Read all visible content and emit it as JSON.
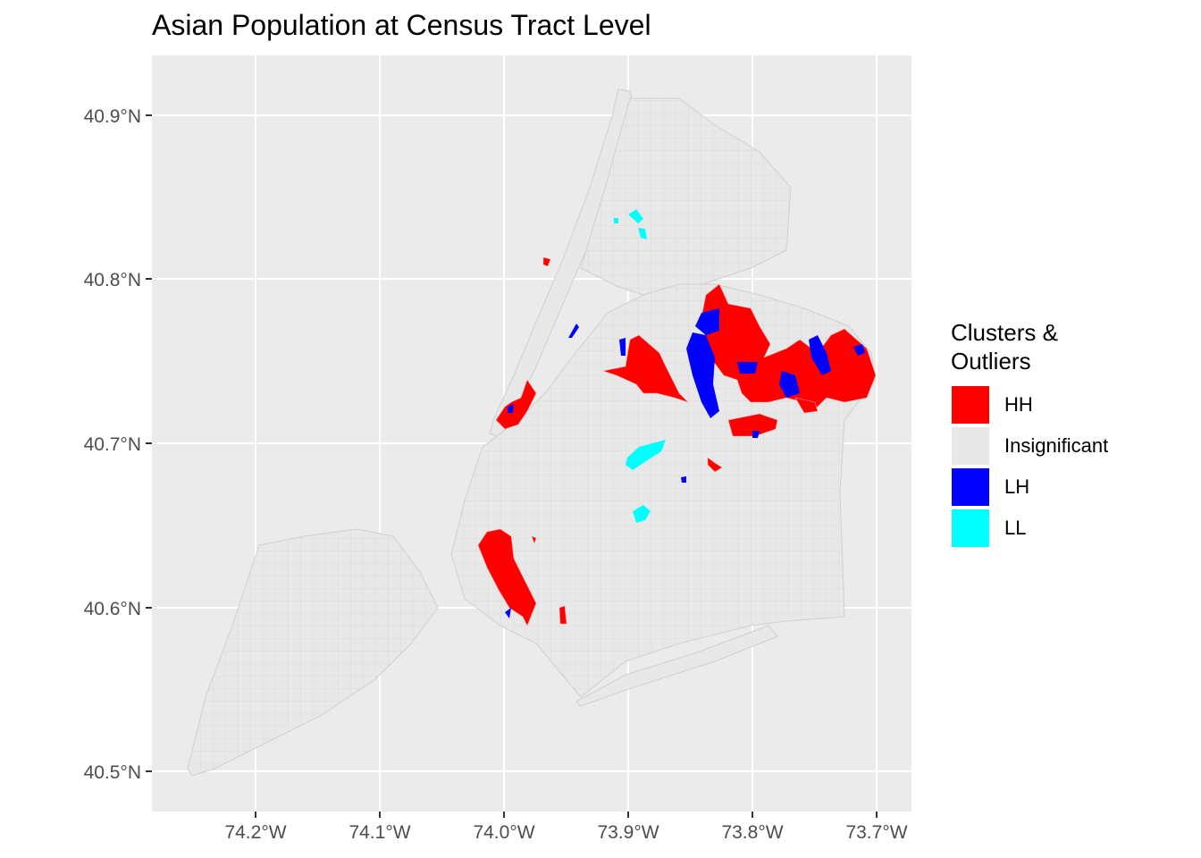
{
  "title": "Asian Population at Census Tract Level",
  "axes": {
    "y_ticks": [
      "40.9°N",
      "40.8°N",
      "40.7°N",
      "40.6°N",
      "40.5°N"
    ],
    "x_ticks": [
      "74.2°W",
      "74.1°W",
      "74.0°W",
      "73.9°W",
      "73.8°W",
      "73.7°W"
    ]
  },
  "legend": {
    "title_line1": "Clusters &",
    "title_line2": "Outliers",
    "items": [
      {
        "label": "HH",
        "color": "#FF0000"
      },
      {
        "label": "Insignificant",
        "color": "#E8E8E8"
      },
      {
        "label": "LH",
        "color": "#0000FF"
      },
      {
        "label": "LL",
        "color": "#00FFFF"
      }
    ]
  },
  "chart_data": {
    "type": "map",
    "title": "Asian Population at Census Tract Level",
    "xlim": [
      -74.28,
      -73.67
    ],
    "ylim": [
      40.48,
      40.94
    ],
    "legend_position": "right",
    "categories": [
      "HH",
      "Insignificant",
      "LH",
      "LL"
    ]
  }
}
